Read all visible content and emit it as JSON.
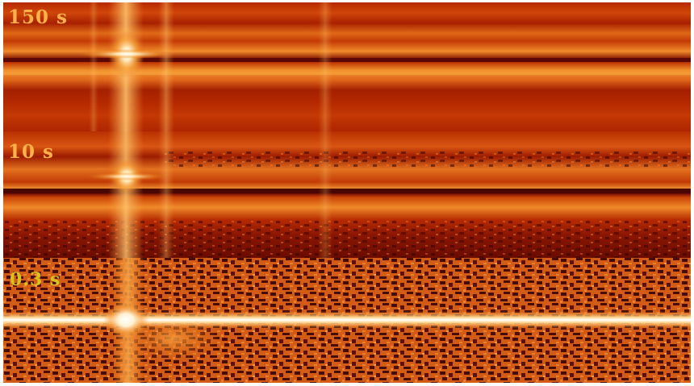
{
  "figure": {
    "description_free": true,
    "colormap": [
      "#2a0600",
      "#7a1200",
      "#b02d00",
      "#d85a0a",
      "#f08a2a",
      "#ffc56a",
      "#fff6dc"
    ],
    "panels": [
      {
        "exposure_label": "150 s"
      },
      {
        "exposure_label": "10 s"
      },
      {
        "exposure_label": "0.3 s"
      }
    ]
  }
}
